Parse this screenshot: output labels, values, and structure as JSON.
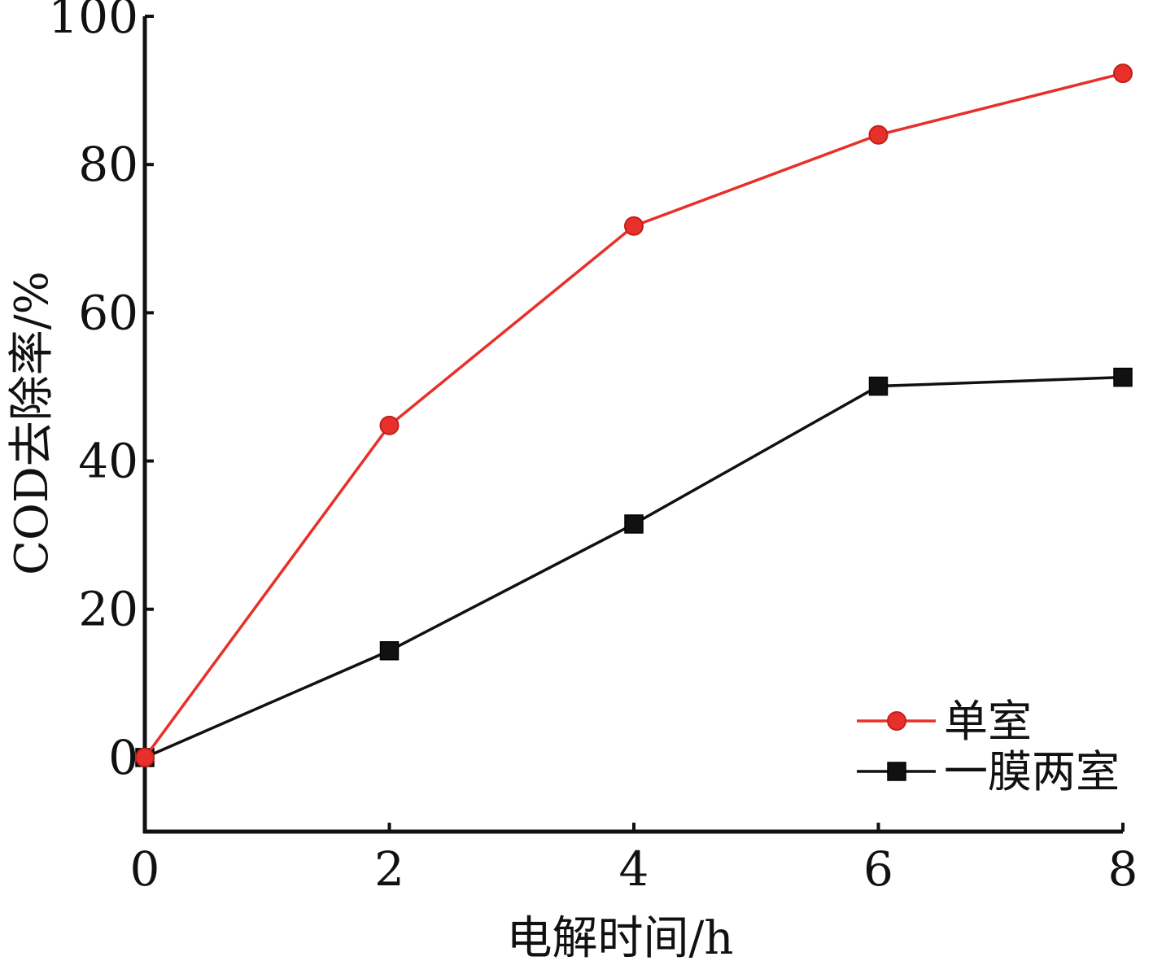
{
  "chart_data": {
    "type": "line",
    "title": "",
    "xlabel": "电解时间/h",
    "ylabel": "COD去除率/%",
    "x": [
      0,
      2,
      4,
      6,
      8
    ],
    "xlim": [
      0,
      8
    ],
    "ylim": [
      -10,
      100
    ],
    "xticks": [
      "0",
      "2",
      "4",
      "6",
      "8"
    ],
    "yticks": [
      "0",
      "20",
      "40",
      "60",
      "80",
      "100"
    ],
    "grid": false,
    "legend_position": "bottom-right",
    "series": [
      {
        "name": "单室",
        "color": "#e8302a",
        "marker": "circle",
        "values": [
          0,
          44.8,
          71.7,
          84.0,
          92.3
        ]
      },
      {
        "name": "一膜两室",
        "color": "#111111",
        "marker": "square",
        "values": [
          0,
          14.4,
          31.5,
          50.1,
          51.3
        ]
      }
    ]
  }
}
